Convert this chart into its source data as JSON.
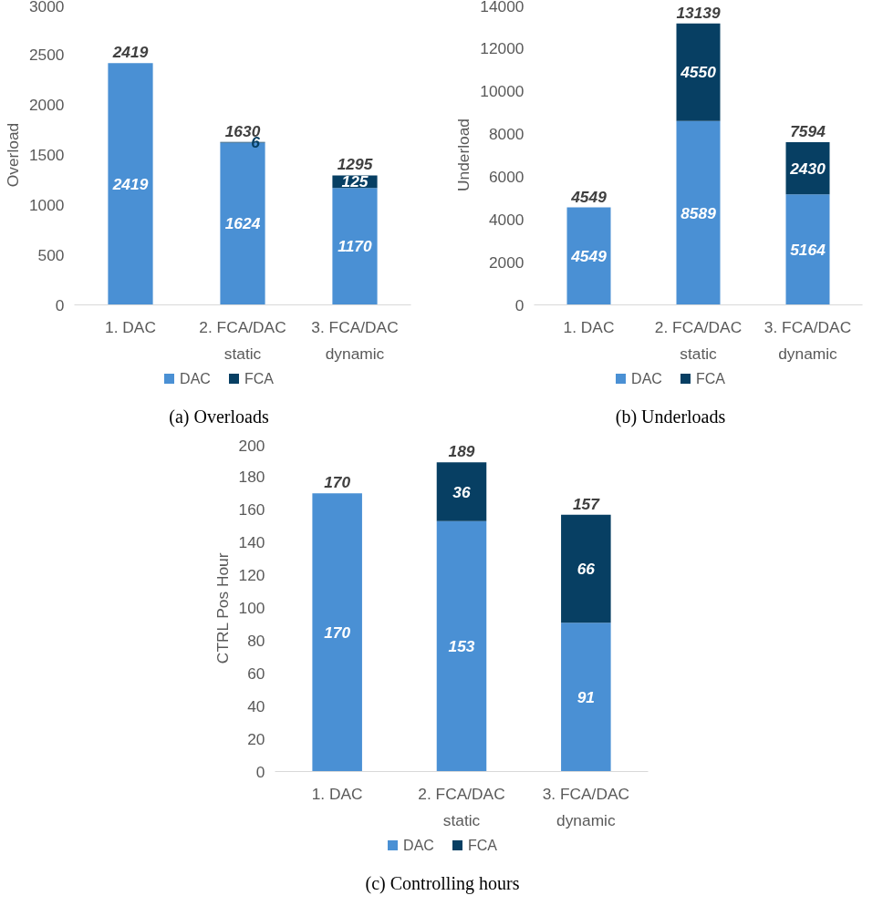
{
  "chart_data": [
    {
      "type": "bar",
      "stacked": true,
      "ylabel": "Overload",
      "categories": [
        "1. DAC",
        "2. FCA/DAC static",
        "3. FCA/DAC dynamic"
      ],
      "ylim": [
        0,
        3000
      ],
      "yticks": [
        0,
        500,
        1000,
        1500,
        2000,
        2500,
        3000
      ],
      "grid": false,
      "legend": "bottom",
      "series": [
        {
          "name": "DAC",
          "color": "#4a90d4",
          "values": [
            2419,
            1624,
            1170
          ],
          "value_labels": [
            "2419",
            "1624",
            "1170"
          ]
        },
        {
          "name": "FCA",
          "color": "#073f63",
          "values": [
            0,
            6,
            125
          ],
          "value_labels": [
            null,
            "6",
            "125"
          ]
        }
      ],
      "totals": [
        "2419",
        "1630",
        "1295"
      ],
      "annotations": [
        "(a)  Overloads"
      ]
    },
    {
      "type": "bar",
      "stacked": true,
      "ylabel": "Underload",
      "categories": [
        "1. DAC",
        "2. FCA/DAC static",
        "3. FCA/DAC dynamic"
      ],
      "ylim": [
        0,
        14000
      ],
      "yticks": [
        0,
        2000,
        4000,
        6000,
        8000,
        10000,
        12000,
        14000
      ],
      "grid": false,
      "legend": "bottom",
      "series": [
        {
          "name": "DAC",
          "color": "#4a90d4",
          "values": [
            4549,
            8589,
            5164
          ],
          "value_labels": [
            "4549",
            "8589",
            "5164"
          ]
        },
        {
          "name": "FCA",
          "color": "#073f63",
          "values": [
            0,
            4550,
            2430
          ],
          "value_labels": [
            null,
            "4550",
            "2430"
          ]
        }
      ],
      "totals": [
        "4549",
        "13139",
        "7594"
      ],
      "annotations": [
        "(b)  Underloads"
      ]
    },
    {
      "type": "bar",
      "stacked": true,
      "ylabel": "CTRL Pos Hour",
      "categories": [
        "1. DAC",
        "2. FCA/DAC static",
        "3. FCA/DAC dynamic"
      ],
      "ylim": [
        0,
        200
      ],
      "yticks": [
        0,
        20,
        40,
        60,
        80,
        100,
        120,
        140,
        160,
        180,
        200
      ],
      "grid": false,
      "legend": "bottom",
      "series": [
        {
          "name": "DAC",
          "color": "#4a90d4",
          "values": [
            170,
            153,
            91
          ],
          "value_labels": [
            "170",
            "153",
            "91"
          ]
        },
        {
          "name": "FCA",
          "color": "#073f63",
          "values": [
            0,
            36,
            66
          ],
          "value_labels": [
            null,
            "36",
            "66"
          ]
        }
      ],
      "totals": [
        "170",
        "189",
        "157"
      ],
      "annotations": [
        "(c)  Controlling hours"
      ]
    }
  ]
}
